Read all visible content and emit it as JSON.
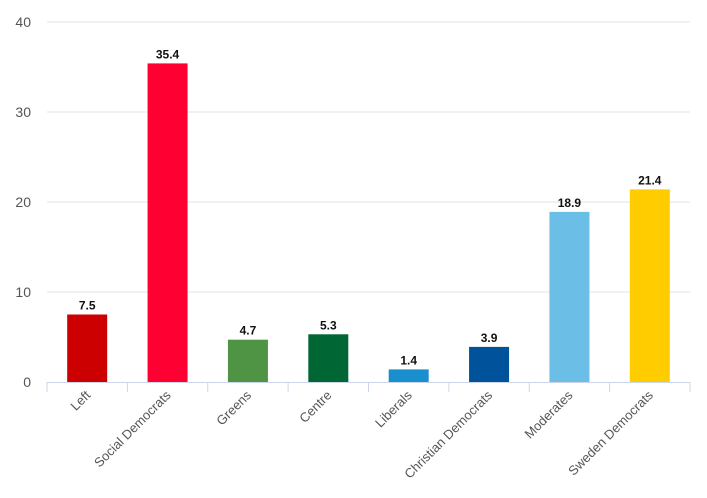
{
  "chart_data": {
    "type": "bar",
    "title": "",
    "xlabel": "",
    "ylabel": "",
    "ylim": [
      0,
      40
    ],
    "yticks": [
      0,
      10,
      20,
      30,
      40
    ],
    "grid": true,
    "legend": "none",
    "categories": [
      "Left",
      "Social Democrats",
      "Greens",
      "Centre",
      "Liberals",
      "Christian Democrats",
      "Moderates",
      "Sweden Democrats"
    ],
    "values": [
      7.5,
      35.4,
      4.7,
      5.3,
      1.4,
      3.9,
      18.9,
      21.4
    ],
    "data_labels": [
      "7.5",
      "35.4",
      "4.7",
      "5.3",
      "1.4",
      "3.9",
      "18.9",
      "21.4"
    ],
    "colors": [
      "#cc0000",
      "#ff0033",
      "#4e9444",
      "#006633",
      "#1a8fce",
      "#00529b",
      "#6bbfe6",
      "#ffcc00"
    ],
    "gridline_color": "#e3e3e3",
    "axis_color": "#ccd6eb"
  }
}
